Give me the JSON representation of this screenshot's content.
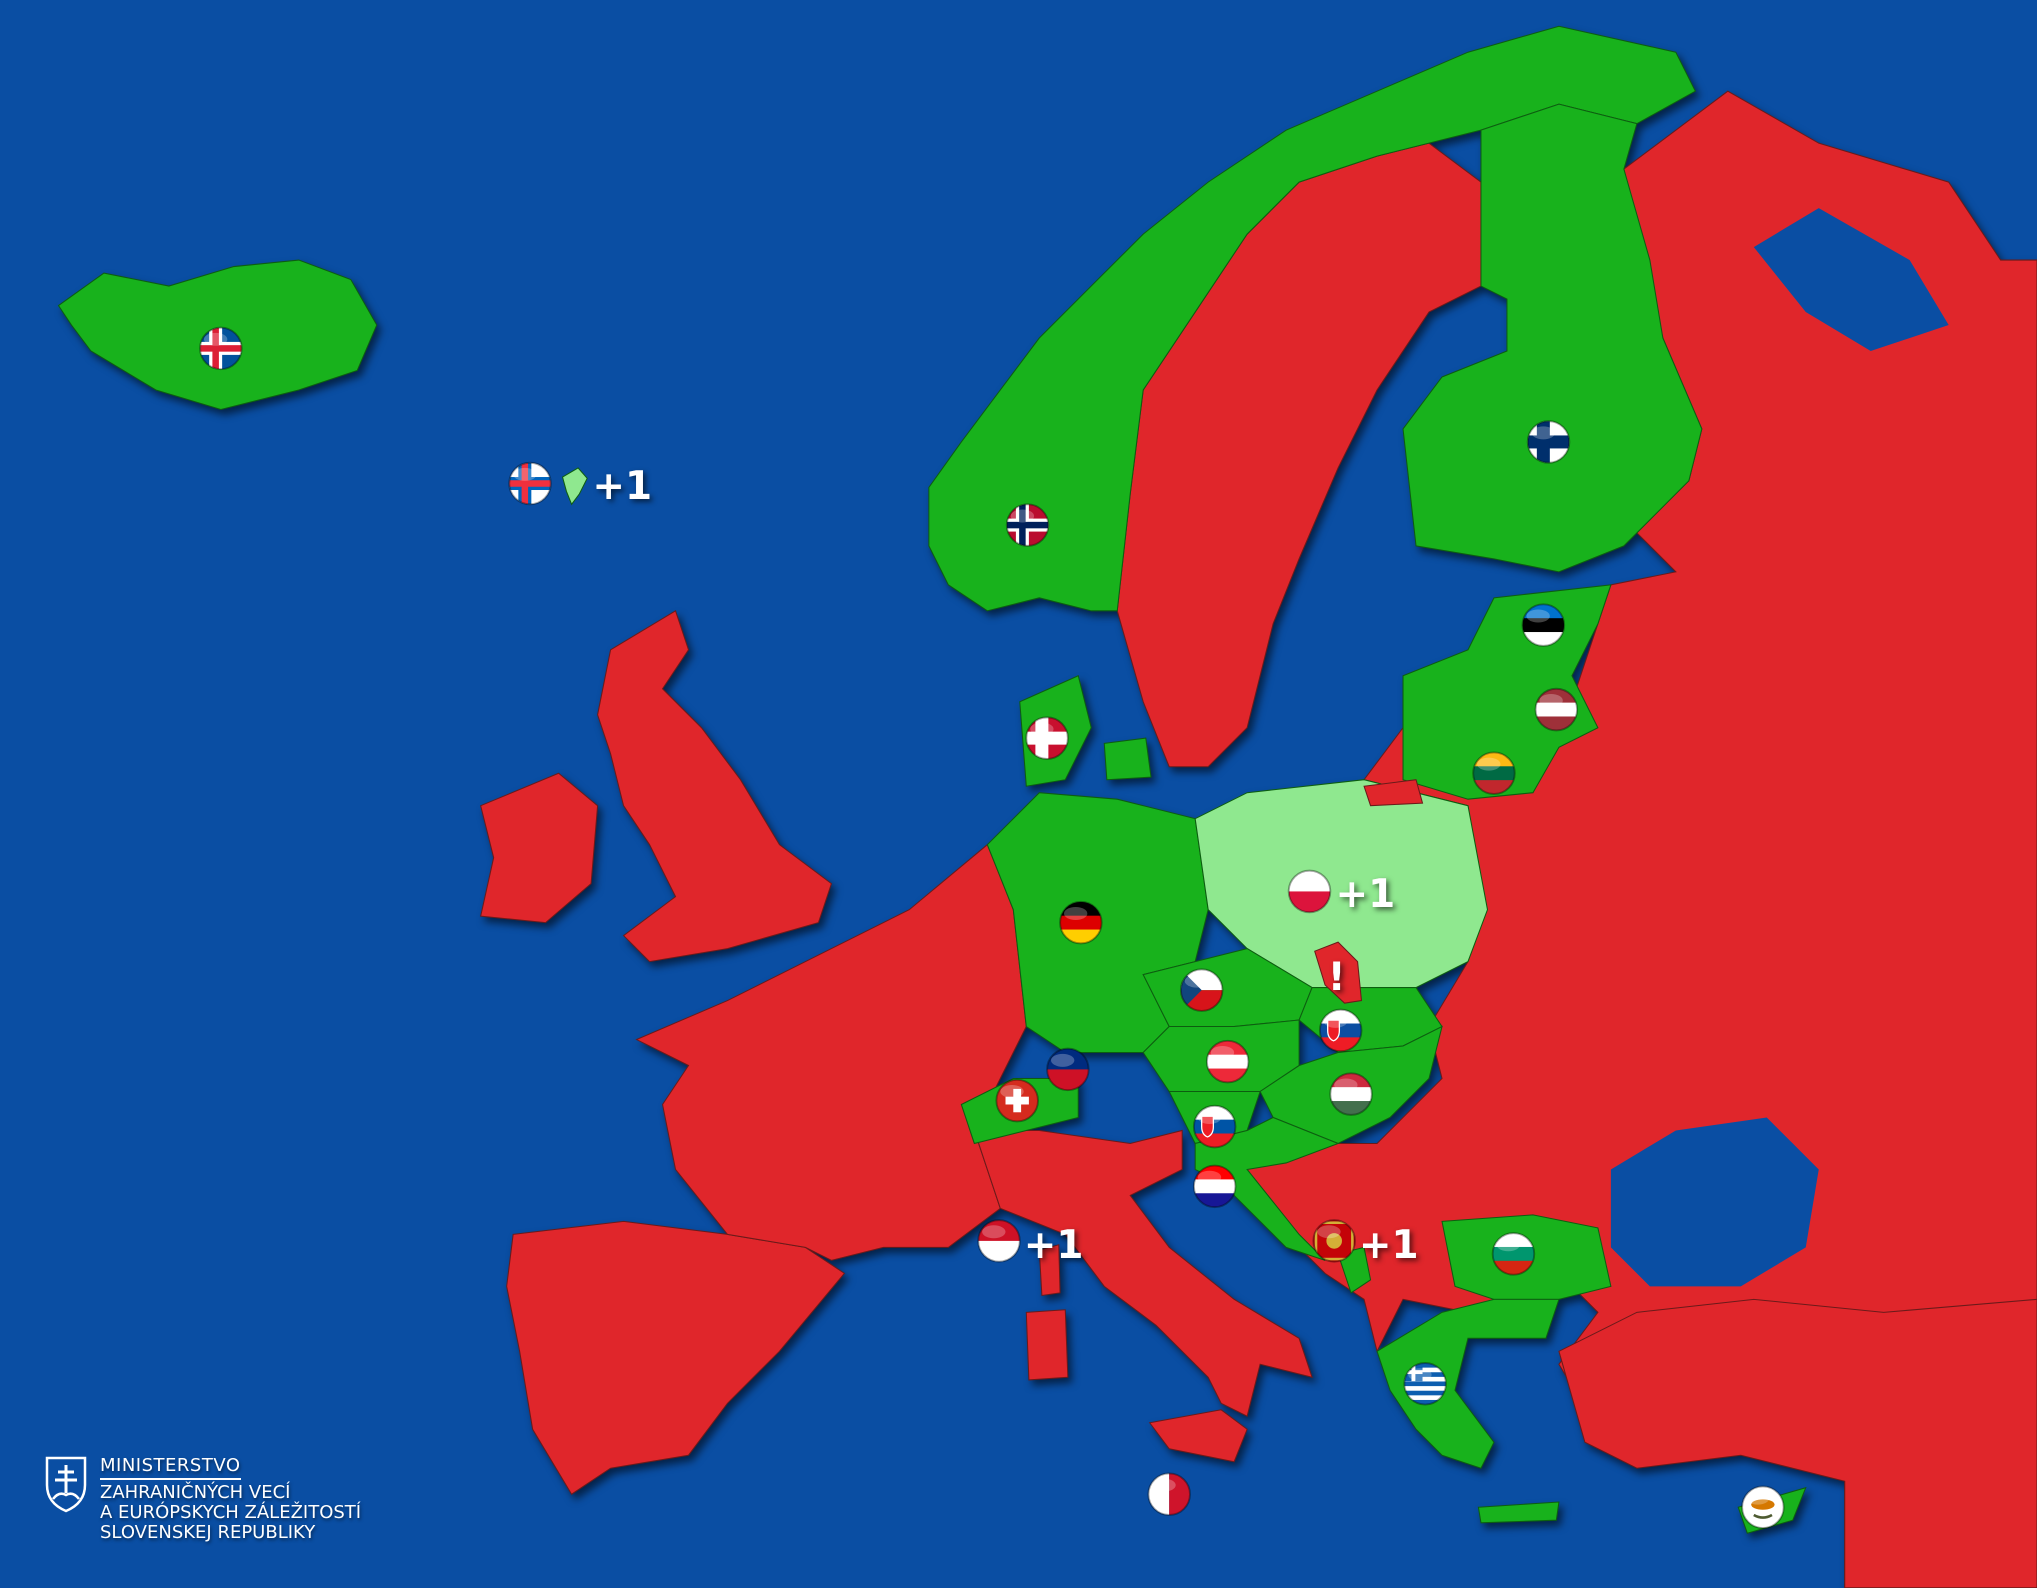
{
  "map": {
    "colors": {
      "sea": "#0a4ea3",
      "excluded": "#e0262b",
      "member": "#18b21c",
      "partial": "#8fe88f"
    },
    "flags": [
      {
        "icon": "flag-iceland"
      },
      {
        "icon": "flag-faroe-islands"
      },
      {
        "icon": "flag-norway"
      },
      {
        "icon": "flag-finland"
      },
      {
        "icon": "flag-estonia"
      },
      {
        "icon": "flag-latvia"
      },
      {
        "icon": "flag-lithuania"
      },
      {
        "icon": "flag-denmark"
      },
      {
        "icon": "flag-poland"
      },
      {
        "icon": "flag-germany"
      },
      {
        "icon": "flag-czechia"
      },
      {
        "icon": "flag-slovakia"
      },
      {
        "icon": "flag-austria"
      },
      {
        "icon": "flag-liechtenstein"
      },
      {
        "icon": "flag-switzerland"
      },
      {
        "icon": "flag-hungary"
      },
      {
        "icon": "flag-slovenia"
      },
      {
        "icon": "flag-croatia"
      },
      {
        "icon": "flag-monaco"
      },
      {
        "icon": "flag-montenegro"
      },
      {
        "icon": "flag-bulgaria"
      },
      {
        "icon": "flag-greece"
      },
      {
        "icon": "flag-malta"
      },
      {
        "icon": "flag-cyprus"
      }
    ],
    "plus_labels": [
      "+1",
      "+1",
      "+1",
      "+1"
    ],
    "warning_mark": "!"
  },
  "logo": {
    "icon": "slovak-coat-of-arms-icon",
    "line1": "MINISTERSTVO",
    "line2": "ZAHRANIČNÝCH VECÍ",
    "line3": "A EURÓPSKYCH ZÁLEŽITOSTÍ",
    "line4": "SLOVENSKEJ REPUBLIKY"
  }
}
